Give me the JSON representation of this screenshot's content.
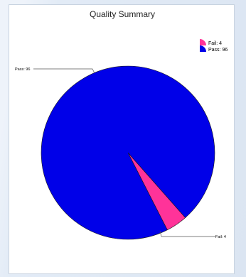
{
  "chart_data": {
    "type": "pie",
    "title": "Quality Summary",
    "slices": [
      {
        "label": "Pass",
        "value": 96,
        "color": "#0000e8"
      },
      {
        "label": "Fail",
        "value": 4,
        "color": "#ff3399"
      }
    ],
    "legend": [
      {
        "text": "Fail: 4",
        "color": "#ff3399"
      },
      {
        "text": "Pass: 96",
        "color": "#0000e8"
      }
    ],
    "callouts": {
      "pass": "Pass: 96",
      "fail": "Fail: 4"
    },
    "legend_placement": "top-right"
  }
}
